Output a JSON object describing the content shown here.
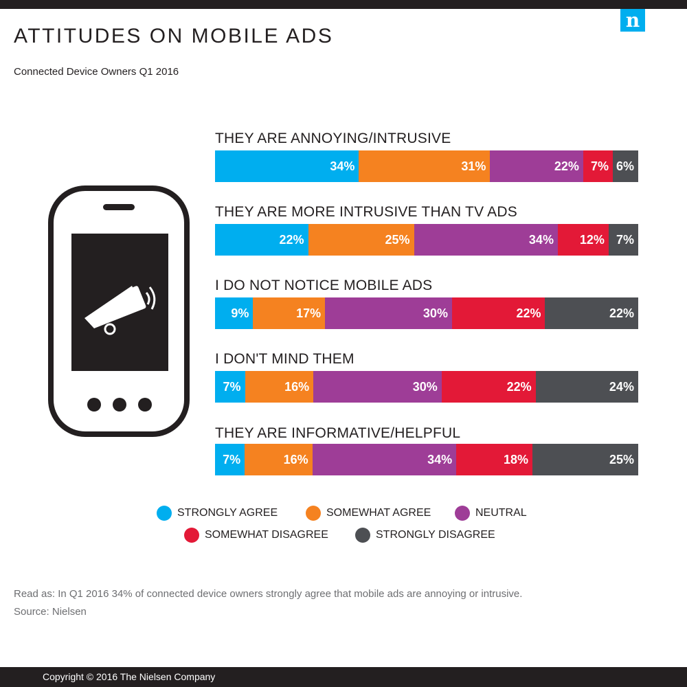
{
  "brand": {
    "logo_letter": "n"
  },
  "header": {
    "title": "ATTITUDES ON MOBILE ADS",
    "subtitle": "Connected Device Owners Q1 2016"
  },
  "colors": {
    "strongly_agree": "#00aeef",
    "somewhat_agree": "#f58220",
    "neutral": "#9e3d97",
    "somewhat_disagree": "#e31937",
    "strongly_disagree": "#4d4f53"
  },
  "icons": {
    "phone": "phone-icon",
    "megaphone": "megaphone-icon"
  },
  "chart_data": {
    "type": "bar",
    "orientation": "horizontal-stacked-100",
    "categories": [
      "THEY ARE ANNOYING/INTRUSIVE",
      "THEY ARE MORE INTRUSIVE THAN TV ADS",
      "I DO NOT NOTICE MOBILE ADS",
      "I DON'T MIND THEM",
      "THEY ARE INFORMATIVE/HELPFUL"
    ],
    "series": [
      {
        "name": "STRONGLY AGREE",
        "values": [
          34,
          22,
          9,
          7,
          7
        ],
        "labels": [
          "34%",
          "22%",
          "9%",
          "7%",
          "7%"
        ]
      },
      {
        "name": "SOMEWHAT AGREE",
        "values": [
          31,
          25,
          17,
          16,
          16
        ],
        "labels": [
          "31%",
          "25%",
          "17%",
          "16%",
          "16%"
        ]
      },
      {
        "name": "NEUTRAL",
        "values": [
          22,
          34,
          30,
          30,
          34
        ],
        "labels": [
          "22%",
          "34%",
          "30%",
          "30%",
          "34%"
        ]
      },
      {
        "name": "SOMEWHAT DISAGREE",
        "values": [
          7,
          12,
          22,
          22,
          18
        ],
        "labels": [
          "7%",
          "12%",
          "22%",
          "22%",
          "18%"
        ]
      },
      {
        "name": "STRONGLY DISAGREE",
        "values": [
          6,
          7,
          22,
          24,
          25
        ],
        "labels": [
          "6%",
          "7%",
          "22%",
          "24%",
          "25%"
        ]
      }
    ],
    "legend_position": "bottom"
  },
  "footnotes": {
    "read_as": "Read as: In Q1 2016 34% of connected device owners strongly agree that mobile ads are annoying or intrusive.",
    "source": "Source: Nielsen"
  },
  "footer": {
    "copyright": "Copyright © 2016 The Nielsen Company"
  }
}
